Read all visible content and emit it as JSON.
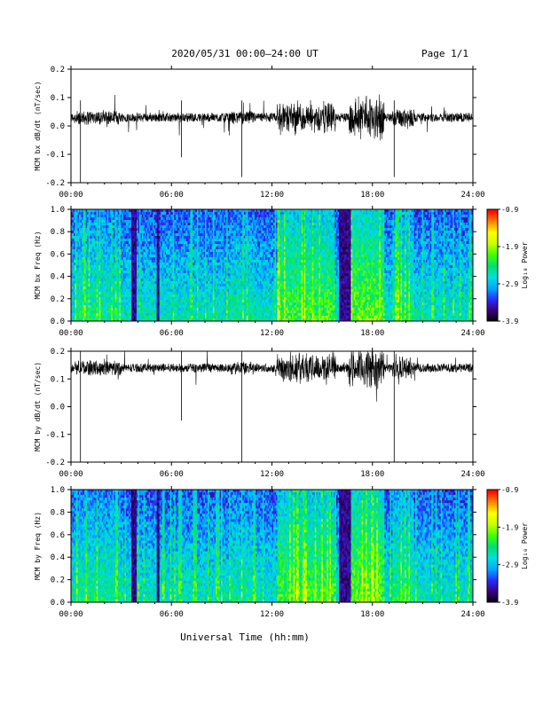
{
  "header": {
    "title": "2020/05/31  00:00–24:00 UT",
    "page": "Page 1/1"
  },
  "xaxis_label": "Universal Time (hh:mm)",
  "colors": {
    "trace": "#000000",
    "colormap": [
      "#000000",
      "#3a007a",
      "#2a2aff",
      "#00a8ff",
      "#00e0e0",
      "#00e070",
      "#40ff00",
      "#c8ff00",
      "#ffff00",
      "#ff8000",
      "#ff0000"
    ]
  },
  "chart_data": [
    {
      "type": "line",
      "ylabel": "MCM bx dB/dt (nT/sec)",
      "ylim": [
        -0.2,
        0.2
      ],
      "yticks": [
        "0.2",
        "0.1",
        "0.0",
        "-0.1",
        "-0.2"
      ],
      "xlim_hours": [
        0,
        24
      ],
      "xticks": [
        "00:00",
        "06:00",
        "12:00",
        "18:00",
        "24:00"
      ],
      "baseline": 0.03,
      "spikes": [
        {
          "t": "00:34",
          "y": -0.2
        },
        {
          "t": "06:36",
          "y": -0.11
        },
        {
          "t": "10:12",
          "y": -0.18
        },
        {
          "t": "19:18",
          "y": -0.18
        }
      ]
    },
    {
      "type": "heatmap",
      "ylabel": "MCM bx Freq (Hz)",
      "ylim": [
        0,
        1.0
      ],
      "yticks": [
        "1.0",
        "0.8",
        "0.6",
        "0.4",
        "0.2",
        "0.0"
      ],
      "xlim_hours": [
        0,
        24
      ],
      "xticks": [
        "00:00",
        "06:00",
        "12:00",
        "18:00",
        "24:00"
      ],
      "colorbar": {
        "label": "Log₁₀ Power",
        "ticks": [
          "-0.9",
          "-1.9",
          "-2.9",
          "-3.9"
        ],
        "range": [
          -3.9,
          -0.9
        ]
      }
    },
    {
      "type": "line",
      "ylabel": "MCM by dB/dt (nT/sec)",
      "ylim": [
        -0.2,
        0.2
      ],
      "yticks": [
        "0.2",
        "0.1",
        "0.0",
        "-0.1",
        "-0.2"
      ],
      "xlim_hours": [
        0,
        24
      ],
      "xticks": [
        "00:00",
        "06:00",
        "12:00",
        "18:00",
        "24:00"
      ],
      "baseline": 0.14,
      "spikes": [
        {
          "t": "00:34",
          "y": -0.2
        },
        {
          "t": "06:36",
          "y": -0.05
        },
        {
          "t": "10:12",
          "y": -0.2
        },
        {
          "t": "19:18",
          "y": -0.2
        }
      ]
    },
    {
      "type": "heatmap",
      "ylabel": "MCM by Freq (Hz)",
      "ylim": [
        0,
        1.0
      ],
      "yticks": [
        "1.0",
        "0.8",
        "0.6",
        "0.4",
        "0.2",
        "0.0"
      ],
      "xlim_hours": [
        0,
        24
      ],
      "xticks": [
        "00:00",
        "06:00",
        "12:00",
        "18:00",
        "24:00"
      ],
      "colorbar": {
        "label": "Log₁₀ Power",
        "ticks": [
          "-0.9",
          "-1.9",
          "-2.9",
          "-3.9"
        ],
        "range": [
          -3.9,
          -0.9
        ]
      }
    }
  ]
}
